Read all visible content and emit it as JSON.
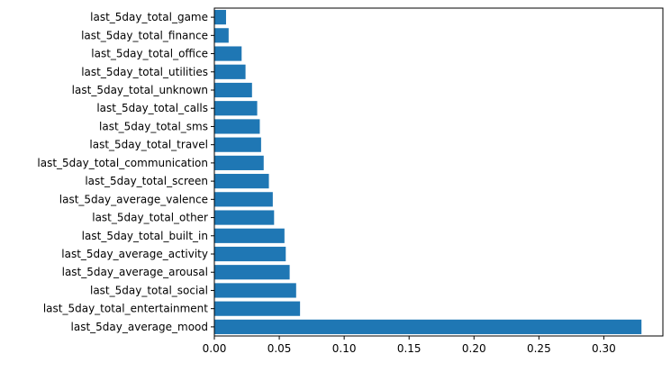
{
  "chart_data": {
    "type": "bar",
    "orientation": "horizontal",
    "categories": [
      "last_5day_average_mood",
      "last_5day_total_entertainment",
      "last_5day_total_social",
      "last_5day_average_arousal",
      "last_5day_average_activity",
      "last_5day_total_built_in",
      "last_5day_total_other",
      "last_5day_average_valence",
      "last_5day_total_screen",
      "last_5day_total_communication",
      "last_5day_total_travel",
      "last_5day_total_sms",
      "last_5day_total_calls",
      "last_5day_total_unknown",
      "last_5day_total_utilities",
      "last_5day_total_office",
      "last_5day_total_finance",
      "last_5day_total_game"
    ],
    "values": [
      0.329,
      0.066,
      0.063,
      0.058,
      0.055,
      0.054,
      0.046,
      0.045,
      0.042,
      0.038,
      0.036,
      0.035,
      0.033,
      0.029,
      0.024,
      0.021,
      0.011,
      0.009
    ],
    "title": "",
    "xlabel": "",
    "ylabel": "",
    "xlim": [
      0,
      0.3455
    ],
    "xticks": [
      0.0,
      0.05,
      0.1,
      0.15,
      0.2,
      0.25,
      0.3
    ],
    "xtick_labels": [
      "0.00",
      "0.05",
      "0.10",
      "0.15",
      "0.20",
      "0.25",
      "0.30"
    ],
    "grid": false,
    "bar_color": "#1f77b4"
  }
}
